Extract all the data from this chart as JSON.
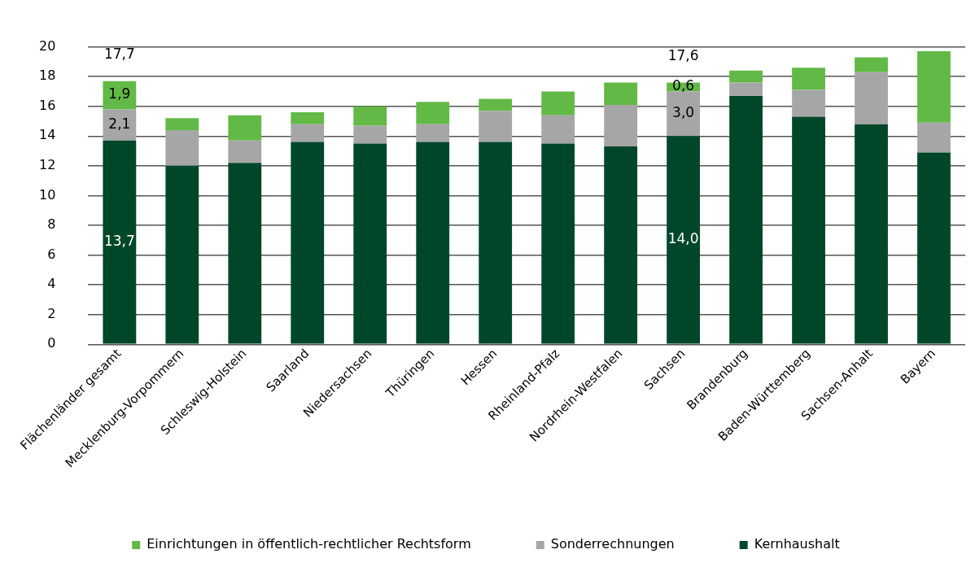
{
  "chart_data": {
    "type": "bar",
    "stacked": true,
    "categories": [
      "Flächenländer gesamt",
      "Mecklenburg-Vorpommern",
      "Schleswig-Holstein",
      "Saarland",
      "Niedersachsen",
      "Thüringen",
      "Hessen",
      "Rheinland-Pfalz",
      "Nordrhein-Westfalen",
      "Sachsen",
      "Brandenburg",
      "Baden-Württemberg",
      "Sachsen-Anhalt",
      "Bayern"
    ],
    "series": [
      {
        "name": "Kernhaushalt",
        "color": "#00472a",
        "values": [
          13.7,
          12.0,
          12.2,
          13.6,
          13.5,
          13.6,
          13.6,
          13.5,
          13.3,
          14.0,
          16.7,
          15.3,
          14.8,
          12.9
        ],
        "value_labels": [
          "13,7",
          null,
          null,
          null,
          null,
          null,
          null,
          null,
          null,
          "14,0",
          null,
          null,
          null,
          null
        ]
      },
      {
        "name": "Sonderrechnungen",
        "color": "#a6a6a6",
        "values": [
          2.1,
          2.4,
          1.5,
          1.2,
          1.2,
          1.2,
          2.1,
          1.9,
          2.8,
          3.0,
          0.9,
          1.8,
          3.5,
          2.0
        ],
        "value_labels": [
          "2,1",
          null,
          null,
          null,
          null,
          null,
          null,
          null,
          null,
          "3,0",
          null,
          null,
          null,
          null
        ]
      },
      {
        "name": "Einrichtungen in öffentlich-rechtlicher Rechtsform",
        "color": "#62b946",
        "values": [
          1.9,
          0.8,
          1.7,
          0.8,
          1.3,
          1.5,
          0.8,
          1.6,
          1.5,
          0.6,
          0.8,
          1.5,
          1.0,
          4.8
        ],
        "value_labels": [
          "1,9",
          null,
          null,
          null,
          null,
          null,
          null,
          null,
          null,
          "0,6",
          null,
          null,
          null,
          null
        ]
      }
    ],
    "totals": [
      "17,7",
      null,
      null,
      null,
      null,
      null,
      null,
      null,
      null,
      "17,6",
      null,
      null,
      null,
      null
    ],
    "ylim": [
      0,
      20
    ],
    "yticks": [
      0,
      2,
      4,
      6,
      8,
      10,
      12,
      14,
      16,
      18,
      20
    ],
    "grid": "y",
    "legend": "bottom"
  }
}
